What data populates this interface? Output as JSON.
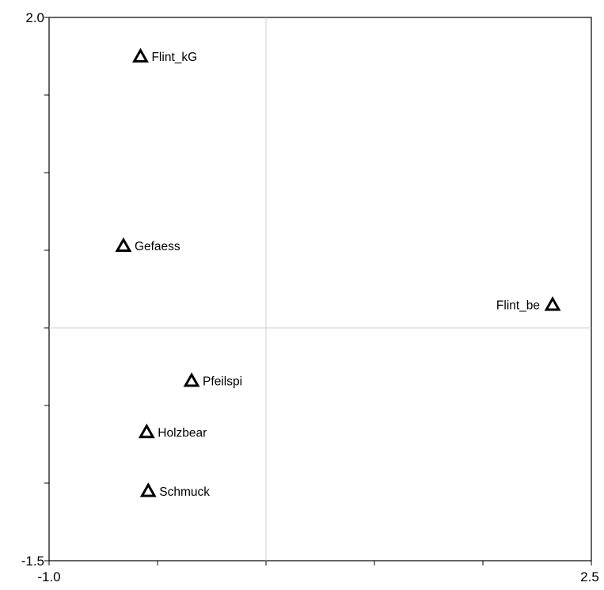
{
  "chart_data": {
    "type": "scatter",
    "title": "",
    "xlabel": "",
    "ylabel": "",
    "xlim": [
      -1.0,
      2.5
    ],
    "ylim": [
      -1.5,
      2.0
    ],
    "x_tick_values": [
      -1.0,
      -0.3,
      0.4,
      1.1,
      1.8,
      2.5
    ],
    "y_tick_values": [
      -1.5,
      -1.0,
      -0.5,
      0.0,
      0.5,
      1.0,
      1.5,
      2.0
    ],
    "x_tick_labels": [
      "-1.0",
      "2.5"
    ],
    "y_tick_labels": [
      "-1.5",
      "2.0"
    ],
    "reference_lines": {
      "x": 0.4,
      "y": 0.0
    },
    "grid": false,
    "legend": "none",
    "marker": "open-triangle",
    "colors": {
      "marker": "#000000",
      "axes": "#000000",
      "reference_line": "#cccccc"
    },
    "points": [
      {
        "label": "Flint_kG",
        "x": -0.41,
        "y": 1.75,
        "label_side": "right"
      },
      {
        "label": "Gefaess",
        "x": -0.52,
        "y": 0.53,
        "label_side": "right"
      },
      {
        "label": "Flint_be",
        "x": 2.25,
        "y": 0.15,
        "label_side": "left"
      },
      {
        "label": "Pfeilspi",
        "x": -0.08,
        "y": -0.34,
        "label_side": "right"
      },
      {
        "label": "Holzbear",
        "x": -0.37,
        "y": -0.67,
        "label_side": "right"
      },
      {
        "label": "Schmuck",
        "x": -0.36,
        "y": -1.05,
        "label_side": "right"
      }
    ]
  }
}
